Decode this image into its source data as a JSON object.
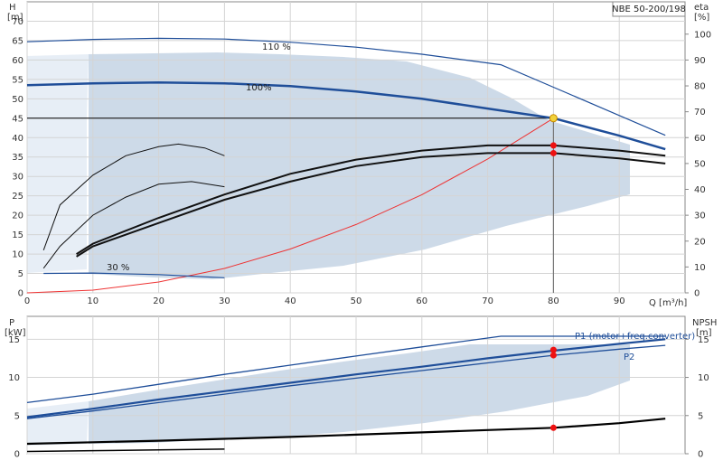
{
  "chart_data": [
    {
      "type": "line",
      "title": "NBE 50-200/198",
      "xlabel": "Q [m³/h]",
      "ylabel": "H",
      "ylabel_unit": "[m]",
      "y2label": "eta",
      "y2label_unit": "[%]",
      "xlim": [
        0,
        100
      ],
      "ylim": [
        0,
        75
      ],
      "y2lim": [
        0,
        112.5
      ],
      "x_ticks": [
        "0",
        "10",
        "20",
        "30",
        "40",
        "50",
        "60",
        "70",
        "80",
        "90"
      ],
      "y_ticks": [
        "0",
        "5",
        "10",
        "15",
        "20",
        "25",
        "30",
        "35",
        "40",
        "45",
        "50",
        "55",
        "60",
        "65",
        "70"
      ],
      "y2_ticks": [
        "0",
        "10",
        "20",
        "30",
        "40",
        "50",
        "60",
        "70",
        "80",
        "90",
        "100"
      ],
      "grid": true,
      "annotations": [
        "110 %",
        "100%",
        "30 %"
      ],
      "operating_point": {
        "x": 80,
        "y": 45
      },
      "head_curves": [
        {
          "label": "110 %",
          "x": [
            0,
            10,
            20,
            30,
            40,
            50,
            60,
            72,
            80,
            97
          ],
          "y": [
            64.7,
            65.3,
            65.6,
            65.4,
            64.6,
            63.3,
            61.5,
            58.8,
            53,
            40.6
          ]
        },
        {
          "label": "100%",
          "x": [
            0,
            10,
            20,
            30,
            40,
            50,
            60,
            70,
            80,
            90,
            97
          ],
          "y": [
            53.5,
            54,
            54.2,
            54,
            53.3,
            51.9,
            50,
            47.5,
            45,
            40.5,
            37
          ]
        },
        {
          "label": "30 %",
          "x": [
            2.5,
            10,
            20,
            30
          ],
          "y": [
            5,
            5.1,
            4.7,
            3.9
          ]
        }
      ],
      "system_curve": {
        "x": [
          0,
          10,
          20,
          30,
          40,
          50,
          60,
          70,
          80
        ],
        "y": [
          0,
          0.7,
          2.8,
          6.3,
          11.3,
          17.6,
          25.3,
          34.5,
          45
        ]
      },
      "operating_line_y": 45,
      "eta_curves": [
        {
          "x": [
            2.5,
            5,
            10,
            15,
            20,
            23,
            27,
            30
          ],
          "y": [
            16.5,
            34,
            45.5,
            53,
            56.5,
            57.5,
            56,
            53
          ]
        },
        {
          "x": [
            2.5,
            5,
            10,
            15,
            20,
            25,
            30
          ],
          "y": [
            9.5,
            18,
            30,
            37,
            42,
            43,
            41
          ]
        },
        {
          "x": [
            7.5,
            10,
            20,
            30,
            40,
            50,
            60,
            70,
            80,
            90,
            97
          ],
          "y": [
            15,
            19,
            29,
            38,
            46,
            51.5,
            55,
            57,
            57,
            55,
            53
          ]
        },
        {
          "x": [
            7.5,
            10,
            20,
            30,
            40,
            50,
            60,
            70,
            80,
            90,
            97
          ],
          "y": [
            14,
            18,
            27,
            36,
            43,
            49,
            52.5,
            54,
            54,
            52,
            50
          ]
        }
      ],
      "markers": [
        {
          "x": 80,
          "y2": 57
        },
        {
          "x": 80,
          "y2": 54
        }
      ]
    },
    {
      "type": "line",
      "ylabel": "P",
      "ylabel_unit": "[kW]",
      "y2label": "NPSH",
      "y2label_unit": "[m]",
      "xlim": [
        0,
        100
      ],
      "ylim": [
        0,
        18
      ],
      "y2lim": [
        0,
        18
      ],
      "y_ticks": [
        "0",
        "5",
        "10",
        "15"
      ],
      "y2_ticks": [
        "0",
        "5",
        "10",
        "15"
      ],
      "grid": true,
      "series": [
        {
          "name": "P1 (motor+freq.converter)",
          "x": [
            0,
            10,
            20,
            30,
            40,
            50,
            60,
            70,
            80,
            90,
            97
          ],
          "y": [
            4.8,
            5.9,
            7.1,
            8.2,
            9.3,
            10.4,
            11.4,
            12.5,
            13.5,
            14.4,
            15
          ]
        },
        {
          "name": "P2",
          "x": [
            0,
            10,
            20,
            30,
            40,
            50,
            60,
            70,
            80,
            90,
            97
          ],
          "y": [
            4.6,
            5.6,
            6.7,
            7.8,
            8.9,
            9.9,
            10.9,
            11.9,
            12.9,
            13.7,
            14.2
          ]
        },
        {
          "name": "",
          "x": [
            0,
            10,
            20,
            30,
            40,
            50,
            60,
            72,
            97
          ],
          "y": [
            6.7,
            7.8,
            9.1,
            10.4,
            11.6,
            12.8,
            14,
            15.4,
            15.4
          ]
        },
        {
          "name": "",
          "x": [
            0,
            10,
            20,
            30,
            40,
            50,
            60,
            70,
            80,
            90,
            97
          ],
          "y": [
            1.3,
            1.5,
            1.7,
            1.95,
            2.2,
            2.5,
            2.8,
            3.1,
            3.4,
            4,
            4.6
          ]
        },
        {
          "name": "",
          "x": [
            0,
            10,
            20,
            30
          ],
          "y": [
            0.3,
            0.4,
            0.5,
            0.6
          ]
        }
      ],
      "markers": [
        {
          "x": 80,
          "y": 13.6
        },
        {
          "x": 80,
          "y": 12.9
        },
        {
          "x": 80,
          "y": 3.4
        }
      ]
    }
  ]
}
